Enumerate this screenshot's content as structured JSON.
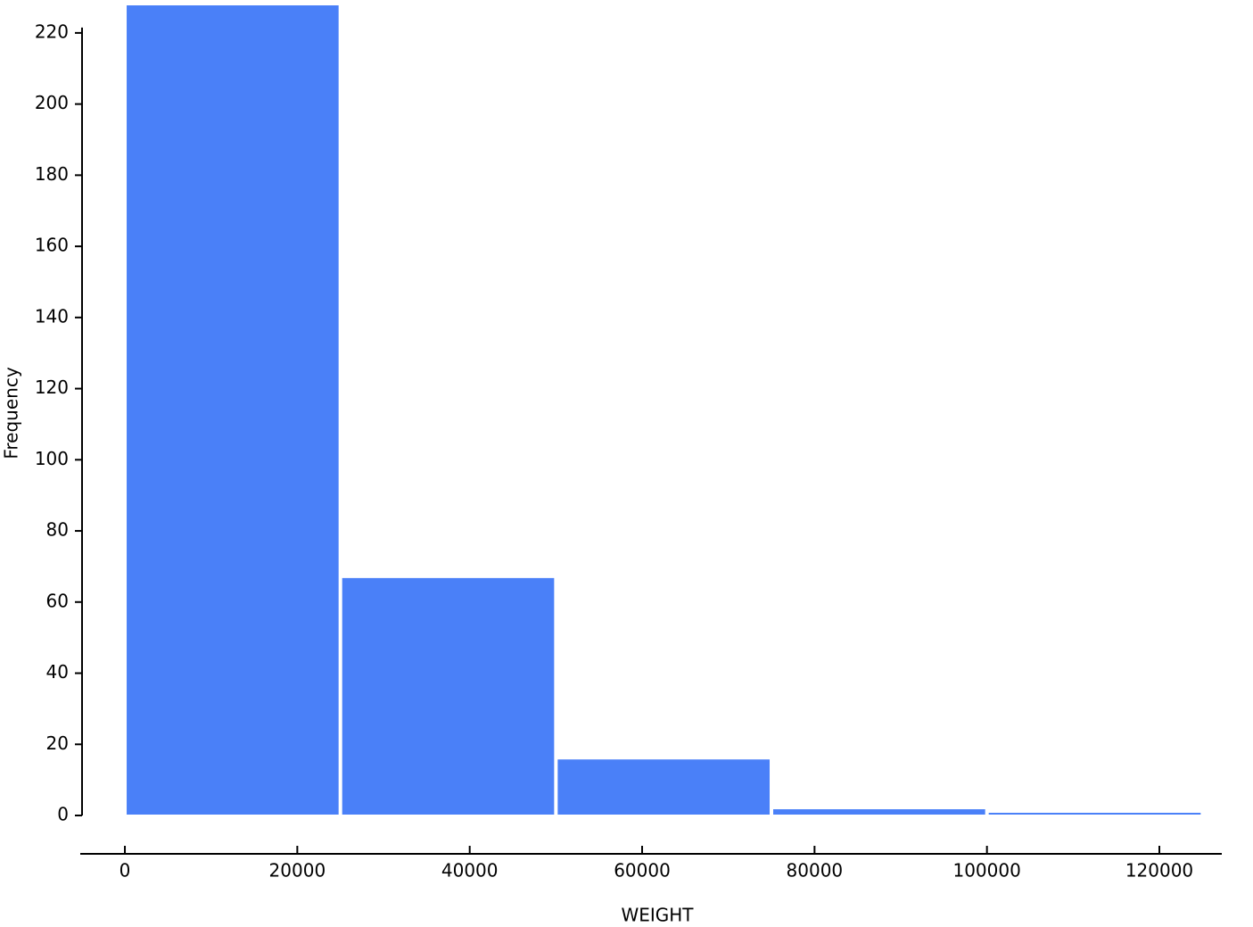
{
  "chart_data": {
    "type": "histogram",
    "x_label": "WEIGHT",
    "y_label": "Frequency",
    "bins": [
      0,
      25000,
      50000,
      75000,
      100000,
      125000
    ],
    "values": [
      228,
      67,
      16,
      2,
      1
    ],
    "color": "#4a80f8",
    "xlim": [
      -5000,
      127500
    ],
    "xticks": [
      0,
      20000,
      40000,
      60000,
      80000,
      100000,
      120000
    ],
    "ylim": [
      0,
      228
    ],
    "yticks": [
      0,
      20,
      40,
      60,
      80,
      100,
      120,
      140,
      160,
      180,
      200,
      220
    ],
    "grid": false
  }
}
